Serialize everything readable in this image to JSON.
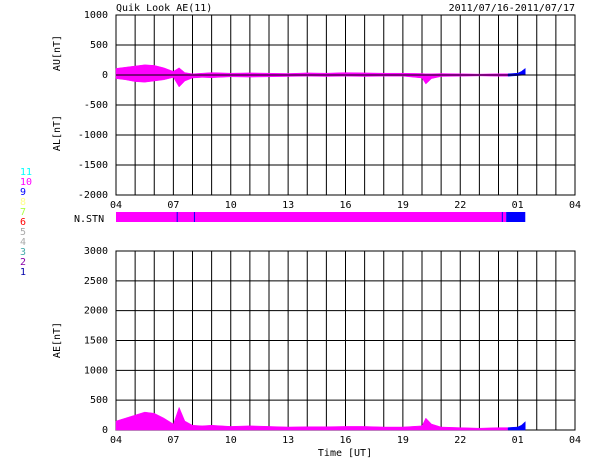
{
  "colors": {
    "magenta": "#ff00ff",
    "blue": "#0000ff",
    "grid": "#000000"
  },
  "chart_data": [
    {
      "type": "area",
      "title": "Quik Look AE(11)",
      "date_range": "2011/07/16-2011/07/17",
      "ylabel_top": "AU[nT]",
      "ylabel_bottom": "AL[nT]",
      "ylim": [
        -2000,
        1000
      ],
      "y_ticks": [
        1000,
        500,
        0,
        -500,
        -1000,
        -1500,
        -2000
      ],
      "x_tick_labels": [
        "04",
        "07",
        "10",
        "13",
        "16",
        "19",
        "22",
        "01",
        "04"
      ],
      "x_hours_since_04UT_start": 0,
      "series": [
        {
          "color_key": "magenta",
          "x": [
            0,
            0.5,
            1,
            1.5,
            2,
            2.5,
            3,
            3.3,
            3.6,
            4,
            4.5,
            5,
            6,
            7,
            8,
            9,
            10,
            11,
            12,
            13,
            14,
            15,
            16,
            16.2,
            16.5,
            17,
            18,
            19,
            20,
            20.5
          ],
          "au": [
            110,
            130,
            150,
            170,
            160,
            120,
            60,
            120,
            40,
            20,
            30,
            40,
            30,
            35,
            30,
            25,
            35,
            30,
            40,
            35,
            30,
            30,
            25,
            20,
            20,
            25,
            20,
            15,
            20,
            20
          ],
          "al": [
            -60,
            -80,
            -110,
            -120,
            -100,
            -80,
            -40,
            -200,
            -100,
            -50,
            -40,
            -45,
            -30,
            -35,
            -30,
            -25,
            -20,
            -25,
            -20,
            -25,
            -20,
            -20,
            -50,
            -150,
            -60,
            -25,
            -20,
            -15,
            -20,
            -20
          ]
        },
        {
          "color_key": "blue",
          "x": [
            20.5,
            21,
            21.2,
            21.4
          ],
          "au": [
            20,
            30,
            60,
            110
          ],
          "al": [
            -20,
            -10,
            -5,
            0
          ]
        }
      ]
    },
    {
      "type": "bar",
      "label": "N.STN",
      "stations_legend": [
        {
          "n": "11",
          "color": "#00ffff"
        },
        {
          "n": "10",
          "color": "#ff00ff"
        },
        {
          "n": "9",
          "color": "#0000ff"
        },
        {
          "n": "8",
          "color": "#ffff88"
        },
        {
          "n": "7",
          "color": "#aaff44"
        },
        {
          "n": "6",
          "color": "#ff0000"
        },
        {
          "n": "5",
          "color": "#aaaaaa"
        },
        {
          "n": "4",
          "color": "#aaaaaa"
        },
        {
          "n": "3",
          "color": "#44aaaa"
        },
        {
          "n": "2",
          "color": "#8800aa"
        },
        {
          "n": "1",
          "color": "#0000aa"
        }
      ],
      "segments": [
        {
          "from": 0,
          "to": 20.4,
          "stations": 10,
          "color_key": "magenta"
        },
        {
          "from": 20.4,
          "to": 21.4,
          "stations": 9,
          "color_key": "blue"
        }
      ]
    },
    {
      "type": "area",
      "ylabel": "AE[nT]",
      "xlabel": "Time [UT]",
      "ylim": [
        0,
        3000
      ],
      "y_ticks": [
        3000,
        2500,
        2000,
        1500,
        1000,
        500,
        0
      ],
      "x_tick_labels": [
        "04",
        "07",
        "10",
        "13",
        "16",
        "19",
        "22",
        "01",
        "04"
      ],
      "series": [
        {
          "color_key": "magenta",
          "x": [
            0,
            0.5,
            1,
            1.5,
            2,
            2.5,
            3,
            3.3,
            3.6,
            4,
            4.5,
            5,
            6,
            7,
            8,
            9,
            10,
            11,
            12,
            13,
            14,
            15,
            16,
            16.2,
            16.5,
            17,
            18,
            19,
            20,
            20.5
          ],
          "values": [
            150,
            200,
            250,
            300,
            280,
            200,
            100,
            380,
            150,
            80,
            70,
            80,
            60,
            70,
            60,
            50,
            55,
            55,
            60,
            60,
            50,
            50,
            70,
            200,
            100,
            50,
            40,
            30,
            40,
            40
          ]
        },
        {
          "color_key": "blue",
          "x": [
            20.5,
            21,
            21.2,
            21.4
          ],
          "values": [
            40,
            50,
            80,
            140
          ]
        }
      ]
    }
  ],
  "labels": {
    "nstn": "N.STN"
  }
}
